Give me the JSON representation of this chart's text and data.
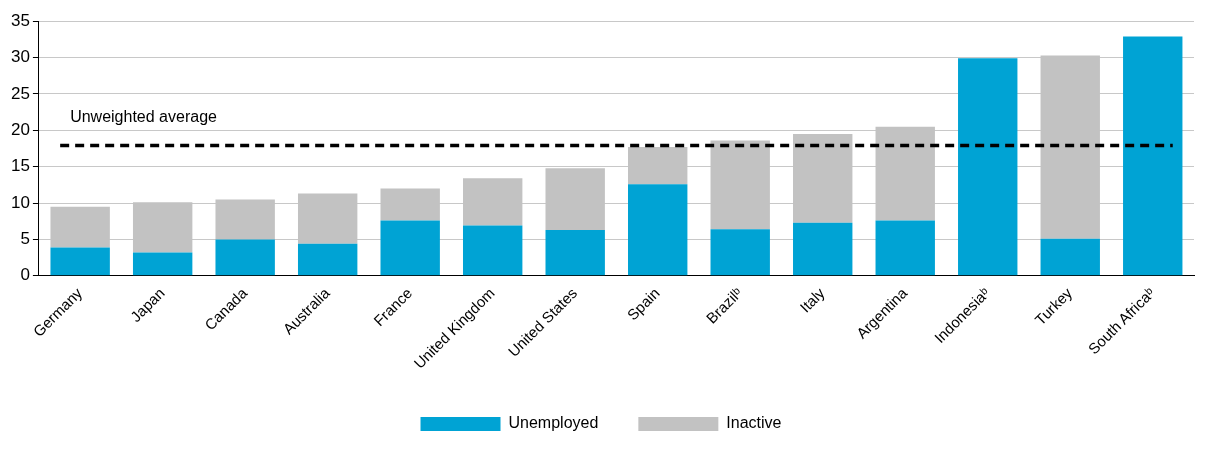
{
  "chart_data": {
    "type": "bar",
    "stacked": true,
    "categories": [
      "Germany",
      "Japan",
      "Canada",
      "Australia",
      "France",
      "United Kingdom",
      "United States",
      "Spain",
      "Brazilᵇ",
      "Italy",
      "Argentina",
      "Indonesiaᵇ",
      "Turkey",
      "South Africaᵇ"
    ],
    "series": [
      {
        "name": "Unemployed",
        "color": "#00a3d4",
        "values": [
          3.9,
          3.2,
          5.0,
          4.4,
          7.6,
          6.9,
          6.3,
          12.6,
          6.4,
          7.3,
          7.6,
          29.9,
          5.1,
          32.9
        ]
      },
      {
        "name": "Inactive",
        "color": "#c2c2c2",
        "values": [
          5.6,
          6.9,
          5.5,
          6.9,
          4.4,
          6.5,
          8.5,
          5.1,
          12.2,
          12.2,
          12.9,
          0,
          25.2,
          0
        ]
      }
    ],
    "ylim": [
      0,
      35
    ],
    "yticks": [
      0,
      5,
      10,
      15,
      20,
      25,
      30,
      35
    ],
    "grid": "y",
    "legend": "bottom",
    "ref_lines": [
      {
        "axis": "y",
        "value": 17.9,
        "label": "Unweighted average",
        "color": "#000000",
        "line_style": "dashed"
      }
    ]
  }
}
